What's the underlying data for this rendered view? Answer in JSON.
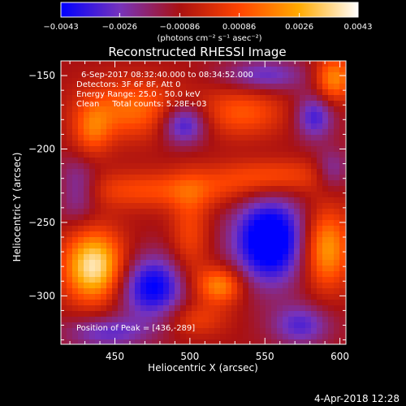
{
  "chart_data": {
    "type": "heatmap",
    "title": "Reconstructed RHESSI Image",
    "xlabel": "Heliocentric X (arcsec)",
    "ylabel": "Heliocentric Y (arcsec)",
    "xlim": [
      414,
      604
    ],
    "ylim": [
      -333,
      -140
    ],
    "x_ticks": [
      450,
      500,
      550,
      600
    ],
    "x_tick_labels": [
      "450",
      "500",
      "550",
      "600"
    ],
    "y_ticks": [
      -150,
      -200,
      -250,
      -300
    ],
    "y_tick_labels": [
      "−150",
      "−200",
      "−250",
      "−300"
    ],
    "colorbar": {
      "range": [
        -0.0043,
        0.0043
      ],
      "ticks": [
        -0.0043,
        -0.0026,
        -0.00086,
        0.00086,
        0.0026,
        0.0043
      ],
      "tick_labels": [
        "−0.0043",
        "−0.0026",
        "−0.00086",
        "0.00086",
        "0.0026",
        "0.0043"
      ],
      "units": "(photons cm⁻² s⁻¹ asec⁻²)",
      "colors": [
        "#0000ff",
        "#7733bb",
        "#aa1111",
        "#ff4400",
        "#ffaa00",
        "#ffffff"
      ]
    },
    "annotations": [
      "6-Sep-2017 08:32:40.000 to 08:34:52.000",
      "Detectors: 3F 6F 8F, Att 0",
      "Energy Range: 25.0 - 50.0 keV",
      "Clean     Total counts: 5.28E+03"
    ],
    "peak_label": "Position of Peak = [436,-289]",
    "peak": [
      436,
      -289
    ],
    "grid": false,
    "sources": [
      {
        "x": 436,
        "y": -280,
        "sx": 14,
        "sy": 17,
        "amp": 0.0048
      },
      {
        "x": 520,
        "y": -293,
        "sx": 11,
        "sy": 9,
        "amp": 0.003
      },
      {
        "x": 591,
        "y": -268,
        "sx": 11,
        "sy": 19,
        "amp": 0.0034
      },
      {
        "x": 596,
        "y": -152,
        "sx": 9,
        "sy": 11,
        "amp": 0.003
      },
      {
        "x": 462,
        "y": -173,
        "sx": 23,
        "sy": 14,
        "amp": 0.0024
      },
      {
        "x": 535,
        "y": -175,
        "sx": 20,
        "sy": 12,
        "amp": 0.002
      },
      {
        "x": 435,
        "y": -187,
        "sx": 9,
        "sy": 13,
        "amp": 0.002
      },
      {
        "x": 480,
        "y": -228,
        "sx": 50,
        "sy": 9,
        "amp": 0.0018
      },
      {
        "x": 555,
        "y": -218,
        "sx": 28,
        "sy": 8,
        "amp": 0.0018
      },
      {
        "x": 500,
        "y": -257,
        "sx": 9,
        "sy": 24,
        "amp": 0.0016
      },
      {
        "x": 505,
        "y": -316,
        "sx": 14,
        "sy": 8,
        "amp": 0.0014
      },
      {
        "x": 475,
        "y": -294,
        "sx": 16,
        "sy": 15,
        "amp": -0.0035
      },
      {
        "x": 553,
        "y": -262,
        "sx": 17,
        "sy": 21,
        "amp": -0.0045
      },
      {
        "x": 496,
        "y": -183,
        "sx": 11,
        "sy": 10,
        "amp": -0.003
      },
      {
        "x": 425,
        "y": -228,
        "sx": 10,
        "sy": 14,
        "amp": -0.0022
      },
      {
        "x": 583,
        "y": -178,
        "sx": 9,
        "sy": 11,
        "amp": -0.0025
      },
      {
        "x": 550,
        "y": -150,
        "sx": 20,
        "sy": 8,
        "amp": -0.002
      },
      {
        "x": 445,
        "y": -325,
        "sx": 20,
        "sy": 8,
        "amp": -0.002
      },
      {
        "x": 574,
        "y": -320,
        "sx": 14,
        "sy": 10,
        "amp": -0.0022
      },
      {
        "x": 595,
        "y": -215,
        "sx": 8,
        "sy": 10,
        "amp": -0.0018
      }
    ],
    "baseline": -0.0009
  },
  "footer": {
    "date": "4-Apr-2018 12:28"
  }
}
